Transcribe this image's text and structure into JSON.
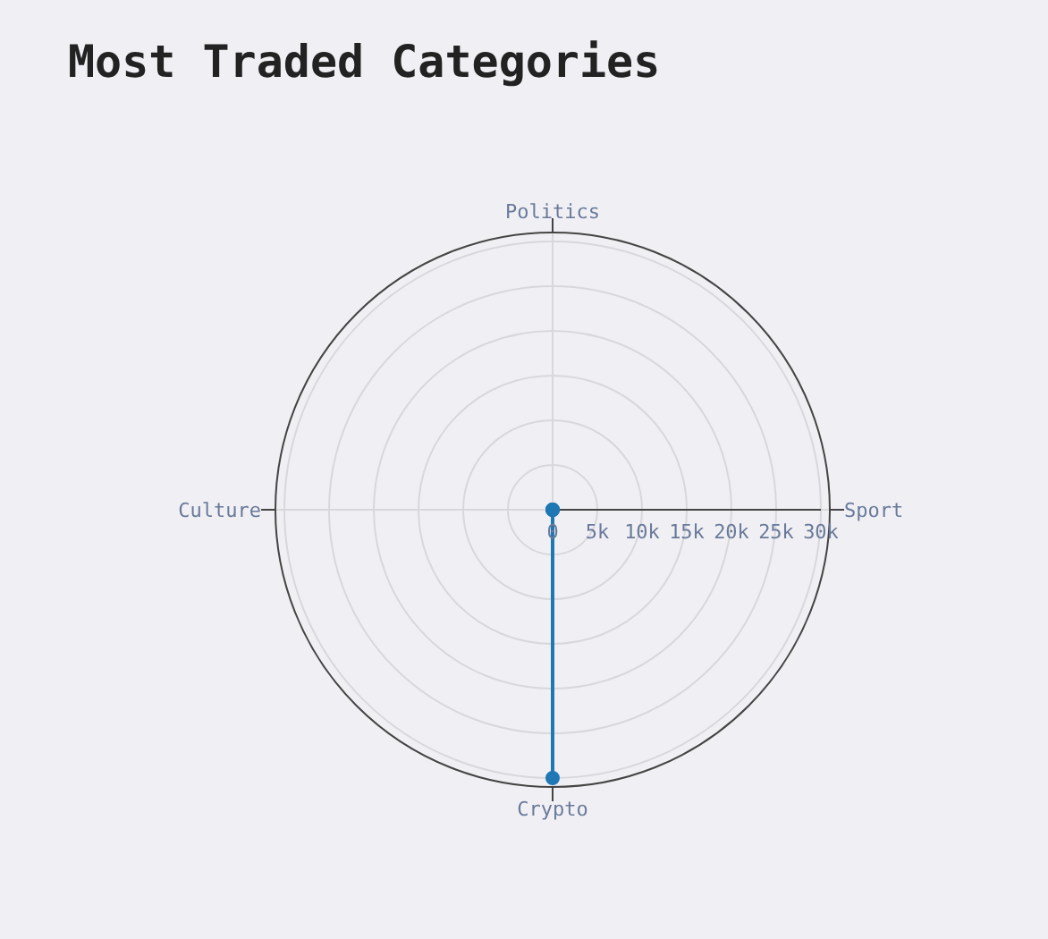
{
  "chart_data": {
    "type": "radar",
    "title": "Most Traded Categories",
    "categories": [
      "Politics",
      "Sport",
      "Crypto",
      "Culture"
    ],
    "series": [
      {
        "color": "#1f77b4",
        "values": [
          0,
          0,
          30000,
          0
        ]
      }
    ],
    "ylim": [
      0,
      31000
    ],
    "yticks": [
      0,
      {
        "value": 5000,
        "label": "5k"
      },
      {
        "value": 10000,
        "label": "10k"
      },
      {
        "value": 15000,
        "label": "15k"
      },
      {
        "value": 20000,
        "label": "20k"
      },
      {
        "value": 25000,
        "label": "25k"
      },
      {
        "value": 30000,
        "label": "30k"
      }
    ],
    "grid": true,
    "marker": "circle",
    "legend": false
  }
}
